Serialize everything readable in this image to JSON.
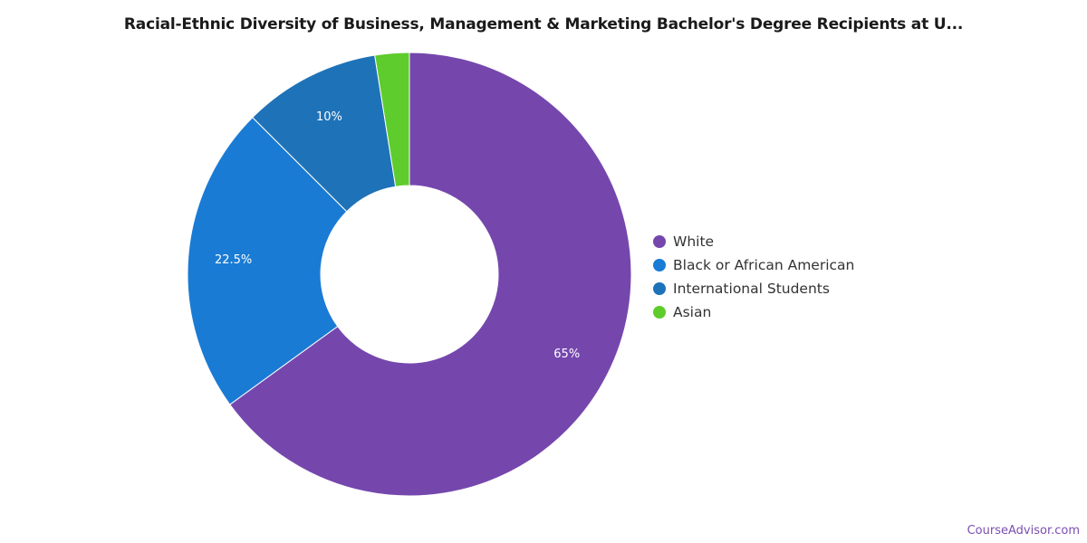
{
  "title": "Racial-Ethnic Diversity of Business, Management & Marketing Bachelor's Degree Recipients at U...",
  "chart_data": {
    "type": "pie",
    "donut": true,
    "title": "Racial-Ethnic Diversity of Business, Management & Marketing Bachelor's Degree Recipients at U...",
    "legend_position": "right",
    "slices": [
      {
        "label": "White",
        "value": 65,
        "display": "65%",
        "color": "#7547ad"
      },
      {
        "label": "Black or African American",
        "value": 22.5,
        "display": "22.5%",
        "color": "#1a7bd4"
      },
      {
        "label": "International Students",
        "value": 10,
        "display": "10%",
        "color": "#1e72b8"
      },
      {
        "label": "Asian",
        "value": 2.5,
        "display": "",
        "color": "#5ecc2c"
      }
    ]
  },
  "watermark": "CourseAdvisor.com"
}
